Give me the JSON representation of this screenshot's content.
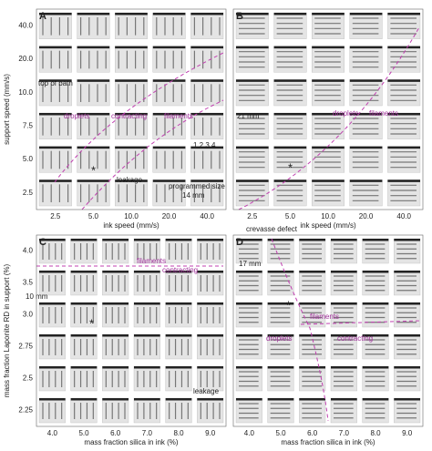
{
  "panels": [
    {
      "label": "A",
      "x_axis": {
        "label": "ink speed (mm/s)",
        "ticks": [
          "2.5",
          "5.0",
          "10.0",
          "20.0",
          "40.0"
        ]
      },
      "y_axis": {
        "label": "support speed (mm/s)",
        "ticks": [
          "40.0",
          "20.0",
          "10.0",
          "7.5",
          "5.0",
          "2.5"
        ]
      },
      "annotations": {
        "top": "top of bath",
        "droplets": "droplets",
        "contracting": "contracting",
        "filaments": "filaments",
        "leakage": "leakage",
        "programmed": "programmed size",
        "size": "14 mm",
        "nozzles": "1 2 3 4",
        "star": "*"
      }
    },
    {
      "label": "B",
      "x_axis": {
        "label": "ink speed (mm/s)",
        "ticks": [
          "2.5",
          "5.0",
          "10.0",
          "20.0",
          "40.0"
        ]
      },
      "y_axis": {
        "ticks": []
      },
      "annotations": {
        "scale": "21 mm",
        "droplets": "droplets",
        "filaments": "filaments",
        "star": "*"
      }
    },
    {
      "label": "C",
      "x_axis": {
        "label": "mass fraction silica in ink (%)",
        "ticks": [
          "4.0",
          "5.0",
          "6.0",
          "7.0",
          "8.0",
          "9.0"
        ]
      },
      "y_axis": {
        "label": "mass fraction Laponite RD in support (%)",
        "ticks": [
          "4.0",
          "3.5",
          "3.0",
          "2.75",
          "2.5",
          "2.25"
        ]
      },
      "annotations": {
        "scale": "10 mm",
        "filaments": "filaments",
        "contracting": "contracting",
        "leakage": "leakage",
        "star": "*"
      }
    },
    {
      "label": "D",
      "x_axis": {
        "label": "mass fraction silica in ink (%)",
        "ticks": [
          "4.0",
          "5.0",
          "6.0",
          "7.0",
          "8.0",
          "9.0"
        ]
      },
      "y_axis": {
        "ticks": []
      },
      "annotations": {
        "crevasse": "crevasse defect",
        "scale": "17 mm",
        "filaments": "filaments",
        "droplets": "droplets",
        "contracting": "contracting",
        "star": "*"
      }
    }
  ]
}
